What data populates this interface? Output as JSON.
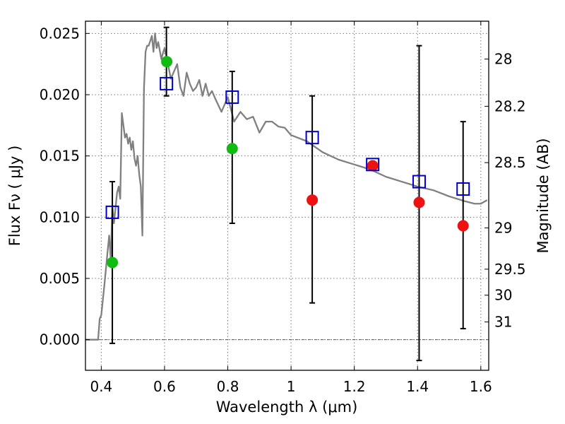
{
  "chart_data": {
    "type": "scatter",
    "xlabel": "Wavelength  λ (μm)",
    "ylabel": "Flux  Fν  ( μJy )",
    "y2label": "Magnitude (AB)",
    "xlim": [
      0.35,
      1.625
    ],
    "ylim": [
      -0.0025,
      0.026
    ],
    "grid": true,
    "x_ticks": [
      0.4,
      0.6,
      0.8,
      1.0,
      1.2,
      1.4,
      1.6
    ],
    "x_tick_labels": [
      "0.4",
      "0.6",
      "0.8",
      "1",
      "1.2",
      "1.4",
      "1.6"
    ],
    "y_ticks": [
      0.0,
      0.005,
      0.01,
      0.015,
      0.02,
      0.025
    ],
    "y_tick_labels": [
      "0.000",
      "0.005",
      "0.010",
      "0.015",
      "0.020",
      "0.025"
    ],
    "y2_ticks": [
      {
        "mag": 28,
        "label": "28"
      },
      {
        "mag": 28.2,
        "label": "28.2"
      },
      {
        "mag": 28.5,
        "label": "28.5"
      },
      {
        "mag": 29,
        "label": "29"
      },
      {
        "mag": 29.5,
        "label": "29.5"
      },
      {
        "mag": 30,
        "label": "30"
      },
      {
        "mag": 31,
        "label": "31"
      }
    ],
    "colors": {
      "model": "#808080",
      "detection": "#11bb11",
      "nondetection": "#ee1111",
      "model_band": "#0000cc",
      "errorbar": "#000000"
    },
    "model_spectrum": {
      "x": [
        0.35,
        0.39,
        0.395,
        0.4,
        0.41,
        0.42,
        0.425,
        0.43,
        0.435,
        0.44,
        0.45,
        0.455,
        0.46,
        0.465,
        0.47,
        0.475,
        0.48,
        0.485,
        0.49,
        0.495,
        0.5,
        0.505,
        0.51,
        0.515,
        0.52,
        0.525,
        0.53,
        0.535,
        0.54,
        0.545,
        0.55,
        0.56,
        0.565,
        0.57,
        0.575,
        0.58,
        0.585,
        0.59,
        0.595,
        0.6,
        0.61,
        0.62,
        0.63,
        0.64,
        0.65,
        0.66,
        0.67,
        0.68,
        0.69,
        0.7,
        0.71,
        0.72,
        0.73,
        0.74,
        0.75,
        0.76,
        0.78,
        0.8,
        0.82,
        0.84,
        0.86,
        0.88,
        0.9,
        0.92,
        0.94,
        0.96,
        0.98,
        1.0,
        1.05,
        1.1,
        1.15,
        1.2,
        1.25,
        1.3,
        1.35,
        1.4,
        1.45,
        1.5,
        1.55,
        1.58,
        1.6,
        1.62
      ],
      "y": [
        0.0,
        0.0,
        0.0017,
        0.002,
        0.0045,
        0.0072,
        0.0085,
        0.0065,
        0.011,
        0.0095,
        0.012,
        0.0125,
        0.0115,
        0.0185,
        0.0175,
        0.0165,
        0.0168,
        0.016,
        0.0165,
        0.0155,
        0.0162,
        0.0148,
        0.0142,
        0.015,
        0.0135,
        0.0125,
        0.0085,
        0.0205,
        0.0235,
        0.024,
        0.024,
        0.0248,
        0.0235,
        0.025,
        0.0238,
        0.0243,
        0.0236,
        0.0229,
        0.0234,
        0.0238,
        0.0226,
        0.0213,
        0.0219,
        0.0225,
        0.0206,
        0.0199,
        0.0218,
        0.0209,
        0.0203,
        0.0206,
        0.0212,
        0.0199,
        0.0209,
        0.0199,
        0.0203,
        0.0197,
        0.0186,
        0.0198,
        0.0178,
        0.0186,
        0.018,
        0.0182,
        0.0169,
        0.0178,
        0.0178,
        0.0174,
        0.0173,
        0.0167,
        0.0162,
        0.0153,
        0.0147,
        0.0143,
        0.0139,
        0.0133,
        0.0129,
        0.0125,
        0.0122,
        0.0117,
        0.0113,
        0.0111,
        0.0111,
        0.0114
      ]
    },
    "series": [
      {
        "x": [
          0.435,
          0.607,
          0.814
        ],
        "y": [
          0.0063,
          0.0227,
          0.0156
        ]
      },
      {
        "x": [
          1.067,
          1.258,
          1.405,
          1.544
        ],
        "y": [
          0.0114,
          0.0142,
          0.0112,
          0.0093
        ]
      },
      {
        "x": [
          0.435,
          0.606,
          0.814,
          1.067,
          1.258,
          1.405,
          1.544
        ],
        "y": [
          0.0104,
          0.0209,
          0.0198,
          0.0165,
          0.0143,
          0.0129,
          0.0123
        ]
      }
    ],
    "errorbars": [
      {
        "x": 0.435,
        "low": -0.0003,
        "high": 0.0129
      },
      {
        "x": 0.606,
        "low": 0.0199,
        "high": 0.0255
      },
      {
        "x": 0.814,
        "low": 0.0095,
        "high": 0.0219
      },
      {
        "x": 1.067,
        "low": 0.003,
        "high": 0.0199
      },
      {
        "x": 1.405,
        "low": -0.0017,
        "high": 0.024
      },
      {
        "x": 1.544,
        "low": 0.0009,
        "high": 0.0178
      }
    ]
  }
}
